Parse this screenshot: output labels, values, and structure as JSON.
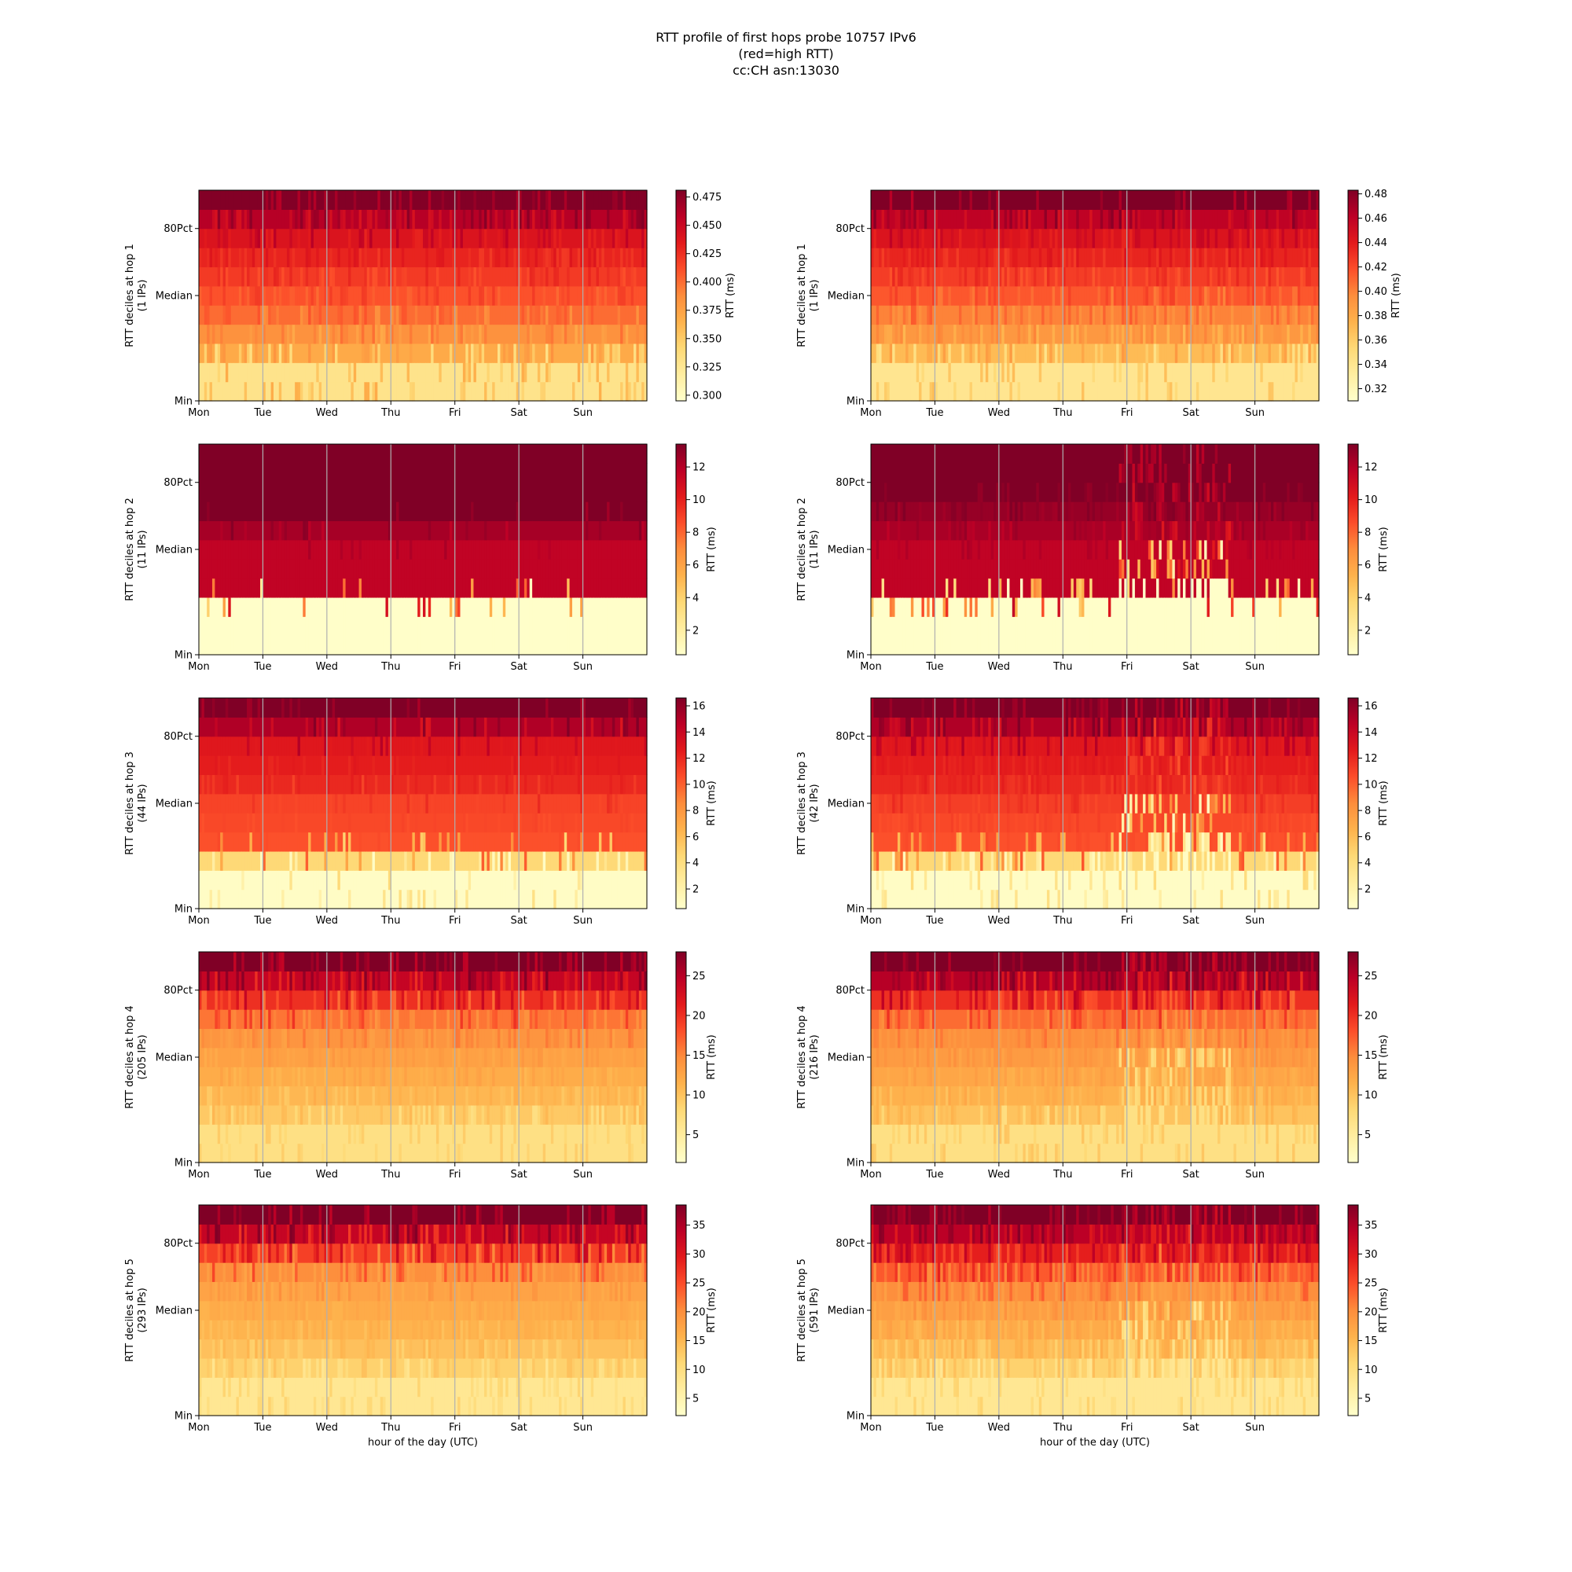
{
  "title_lines": [
    "RTT profile of first hops probe 10757 IPv6",
    "(red=high RTT)",
    "cc:CH asn:13030"
  ],
  "colormap": [
    "#ffffcc",
    "#ffeda0",
    "#fed976",
    "#feb24c",
    "#fd8d3c",
    "#fc4e2a",
    "#e31a1c",
    "#bd0026",
    "#800026"
  ],
  "xlabel": "hour of the day (UTC)",
  "day_ticks": [
    "Mon",
    "Tue",
    "Wed",
    "Thu",
    "Fri",
    "Sat",
    "Sun"
  ],
  "y_ticks": [
    "80Pct",
    "Median",
    "Min"
  ],
  "colorbar_label": "RTT (ms)",
  "chart_data": [
    {
      "type": "heatmap",
      "hop": 1,
      "ylabel": "RTT deciles at hop 1",
      "ips": "(1 IPs)",
      "xlabel": "",
      "clim": [
        0.295,
        0.481
      ],
      "colorbar_ticks": [
        "0.300",
        "0.325",
        "0.350",
        "0.375",
        "0.400",
        "0.425",
        "0.450",
        "0.475"
      ],
      "colorbar_values": [
        0.3,
        0.325,
        0.35,
        0.375,
        0.4,
        0.425,
        0.45,
        0.475
      ],
      "deciles": [
        0.33,
        0.37,
        0.385,
        0.4,
        0.41,
        0.42,
        0.43,
        0.44,
        0.46,
        0.48
      ],
      "noise": 0.35,
      "event": 0
    },
    {
      "type": "heatmap",
      "hop": 1,
      "ylabel": "RTT deciles at hop 1",
      "ips": "(1 IPs)",
      "xlabel": "",
      "clim": [
        0.31,
        0.483
      ],
      "colorbar_ticks": [
        "0.32",
        "0.34",
        "0.36",
        "0.38",
        "0.40",
        "0.42",
        "0.44",
        "0.46",
        "0.48"
      ],
      "colorbar_values": [
        0.32,
        0.34,
        0.36,
        0.38,
        0.4,
        0.42,
        0.44,
        0.46,
        0.48
      ],
      "deciles": [
        0.34,
        0.37,
        0.39,
        0.4,
        0.415,
        0.425,
        0.435,
        0.445,
        0.46,
        0.483
      ],
      "noise": 0.35,
      "event": 0
    },
    {
      "type": "heatmap",
      "hop": 2,
      "ylabel": "RTT deciles at hop 2",
      "ips": "(11 IPs)",
      "xlabel": "",
      "clim": [
        0.5,
        13.4
      ],
      "colorbar_ticks": [
        "2",
        "4",
        "6",
        "8",
        "10",
        "12"
      ],
      "colorbar_values": [
        2,
        4,
        6,
        8,
        10,
        12
      ],
      "deciles": [
        0.6,
        0.6,
        11.6,
        11.6,
        11.6,
        12.4,
        13.4,
        13.4,
        13.4,
        13.4
      ],
      "noise": 0.12,
      "event": 0
    },
    {
      "type": "heatmap",
      "hop": 2,
      "ylabel": "RTT deciles at hop 2",
      "ips": "(11 IPs)",
      "xlabel": "",
      "clim": [
        0.5,
        13.4
      ],
      "colorbar_ticks": [
        "2",
        "4",
        "6",
        "8",
        "10",
        "12"
      ],
      "colorbar_values": [
        2,
        4,
        6,
        8,
        10,
        12
      ],
      "deciles": [
        0.6,
        0.6,
        11.6,
        11.6,
        11.6,
        12.3,
        12.8,
        13.4,
        13.4,
        13.4
      ],
      "noise": 0.3,
      "event": 1
    },
    {
      "type": "heatmap",
      "hop": 3,
      "ylabel": "RTT deciles at hop 3",
      "ips": "(44 IPs)",
      "xlabel": "",
      "clim": [
        0.5,
        16.6
      ],
      "colorbar_ticks": [
        "2",
        "4",
        "6",
        "8",
        "10",
        "12",
        "14",
        "16"
      ],
      "colorbar_values": [
        2,
        4,
        6,
        8,
        10,
        12,
        14,
        16
      ],
      "deciles": [
        0.8,
        4.5,
        10.5,
        10.8,
        11.0,
        12.0,
        12.5,
        12.8,
        15.0,
        16.6
      ],
      "noise": 0.18,
      "event": 0
    },
    {
      "type": "heatmap",
      "hop": 3,
      "ylabel": "RTT deciles at hop 3",
      "ips": "(42 IPs)",
      "xlabel": "",
      "clim": [
        0.5,
        16.6
      ],
      "colorbar_ticks": [
        "2",
        "4",
        "6",
        "8",
        "10",
        "12",
        "14",
        "16"
      ],
      "colorbar_values": [
        2,
        4,
        6,
        8,
        10,
        12,
        14,
        16
      ],
      "deciles": [
        0.8,
        4.5,
        10.5,
        10.8,
        11.2,
        12.0,
        12.5,
        12.8,
        15.0,
        16.6
      ],
      "noise": 0.35,
      "event": 1
    },
    {
      "type": "heatmap",
      "hop": 4,
      "ylabel": "RTT deciles at hop 4",
      "ips": "(205 IPs)",
      "xlabel": "",
      "clim": [
        1.5,
        28.0
      ],
      "colorbar_ticks": [
        "5",
        "10",
        "15",
        "20",
        "25"
      ],
      "colorbar_values": [
        5,
        10,
        15,
        20,
        25
      ],
      "deciles": [
        7.0,
        9.5,
        11.0,
        12.0,
        13.0,
        14.0,
        16.0,
        20.0,
        24.0,
        28.0
      ],
      "noise": 0.35,
      "event": 0
    },
    {
      "type": "heatmap",
      "hop": 4,
      "ylabel": "RTT deciles at hop 4",
      "ips": "(216 IPs)",
      "xlabel": "",
      "clim": [
        1.5,
        28.0
      ],
      "colorbar_ticks": [
        "5",
        "10",
        "15",
        "20",
        "25"
      ],
      "colorbar_values": [
        5,
        10,
        15,
        20,
        25
      ],
      "deciles": [
        7.0,
        10.0,
        11.5,
        12.5,
        13.5,
        14.5,
        16.5,
        20.0,
        25.0,
        28.0
      ],
      "noise": 0.4,
      "event": 1
    },
    {
      "type": "heatmap",
      "hop": 5,
      "ylabel": "RTT deciles at hop 5",
      "ips": "(293 IPs)",
      "xlabel": "hour of the day (UTC)",
      "clim": [
        2.0,
        38.5
      ],
      "colorbar_ticks": [
        "5",
        "10",
        "15",
        "20",
        "25",
        "30",
        "35"
      ],
      "colorbar_values": [
        5,
        10,
        15,
        20,
        25,
        30,
        35
      ],
      "deciles": [
        8.0,
        12.0,
        14.0,
        15.5,
        16.5,
        17.5,
        20.0,
        26.0,
        33.0,
        38.5
      ],
      "noise": 0.4,
      "event": 0
    },
    {
      "type": "heatmap",
      "hop": 5,
      "ylabel": "RTT deciles at hop 5",
      "ips": "(591 IPs)",
      "xlabel": "hour of the day (UTC)",
      "clim": [
        2.0,
        38.5
      ],
      "colorbar_ticks": [
        "5",
        "10",
        "15",
        "20",
        "25",
        "30",
        "35"
      ],
      "colorbar_values": [
        5,
        10,
        15,
        20,
        25,
        30,
        35
      ],
      "deciles": [
        8.0,
        12.0,
        14.5,
        16.5,
        18.0,
        20.0,
        24.0,
        29.0,
        34.0,
        38.5
      ],
      "noise": 0.45,
      "event": 1
    }
  ]
}
